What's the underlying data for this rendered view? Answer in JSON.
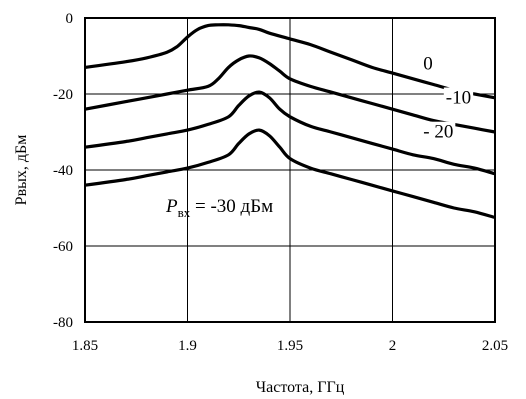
{
  "chart_data": {
    "type": "line",
    "xlabel": "Частота, ГГц",
    "ylabel": "Pвых, дБм",
    "xlim": [
      1.85,
      2.05
    ],
    "ylim": [
      -80,
      0
    ],
    "xticks": [
      "1.85",
      "1.9",
      "1.95",
      "2",
      "2.05"
    ],
    "yticks": [
      "0",
      "-20",
      "-40",
      "-60",
      "-80"
    ],
    "grid": true,
    "annotation": {
      "symbol": "P",
      "subscript": "вх",
      "rest": " = -30 дБм"
    },
    "series": [
      {
        "name": "0",
        "x": [
          1.85,
          1.87,
          1.88,
          1.89,
          1.895,
          1.9,
          1.905,
          1.91,
          1.915,
          1.92,
          1.925,
          1.93,
          1.935,
          1.94,
          1.95,
          1.96,
          1.97,
          1.98,
          1.99,
          2.0,
          2.01,
          2.02,
          2.03,
          2.04,
          2.05
        ],
        "y": [
          -13,
          -11.5,
          -10.5,
          -9,
          -7.5,
          -5,
          -3,
          -2,
          -1.8,
          -1.8,
          -2,
          -2.5,
          -3,
          -4,
          -5.5,
          -7,
          -9,
          -11,
          -13,
          -14.5,
          -16,
          -17.5,
          -19,
          -20,
          -21
        ]
      },
      {
        "name": "-10",
        "x": [
          1.85,
          1.87,
          1.88,
          1.89,
          1.9,
          1.91,
          1.915,
          1.92,
          1.925,
          1.93,
          1.935,
          1.94,
          1.945,
          1.95,
          1.96,
          1.97,
          1.98,
          1.99,
          2.0,
          2.01,
          2.02,
          2.03,
          2.04,
          2.05
        ],
        "y": [
          -24,
          -22,
          -21,
          -20,
          -19,
          -18,
          -16,
          -13,
          -11,
          -10,
          -10.5,
          -12,
          -14,
          -16,
          -18,
          -19.5,
          -21,
          -22.5,
          -24,
          -25.5,
          -27,
          -28,
          -29,
          -30
        ]
      },
      {
        "name": "- 20",
        "x": [
          1.85,
          1.87,
          1.88,
          1.89,
          1.9,
          1.91,
          1.92,
          1.925,
          1.93,
          1.935,
          1.94,
          1.945,
          1.95,
          1.96,
          1.97,
          1.98,
          1.99,
          2.0,
          2.01,
          2.02,
          2.03,
          2.04,
          2.05
        ],
        "y": [
          -34,
          -32.5,
          -31.5,
          -30.5,
          -29.5,
          -28,
          -26,
          -23,
          -20.5,
          -19.5,
          -21,
          -24,
          -26,
          -28.5,
          -30,
          -31.5,
          -33,
          -34.5,
          -36,
          -37,
          -38.5,
          -39.5,
          -41
        ]
      },
      {
        "name": "",
        "x": [
          1.85,
          1.87,
          1.88,
          1.89,
          1.9,
          1.91,
          1.92,
          1.925,
          1.93,
          1.935,
          1.94,
          1.945,
          1.95,
          1.96,
          1.97,
          1.98,
          1.99,
          2.0,
          2.01,
          2.02,
          2.03,
          2.04,
          2.05
        ],
        "y": [
          -44,
          -42.5,
          -41.5,
          -40.5,
          -39.5,
          -38,
          -36,
          -33,
          -30.5,
          -29.5,
          -31,
          -34,
          -37,
          -39.5,
          -41,
          -42.5,
          -44,
          -45.5,
          -47,
          -48.5,
          -50,
          -51,
          -52.5
        ]
      }
    ],
    "series_label_positions": [
      {
        "x": 2.015,
        "y": -13.5
      },
      {
        "x": 2.026,
        "y": -22.5
      },
      {
        "x": 2.015,
        "y": -31.5
      }
    ]
  }
}
